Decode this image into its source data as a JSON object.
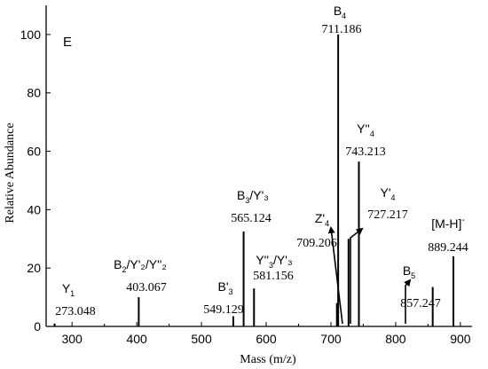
{
  "chart_data": {
    "type": "bar",
    "panel_label": "E",
    "xlabel": "Mass (m/z)",
    "ylabel": "Relative Abundance",
    "xlim": [
      260,
      918
    ],
    "ylim": [
      0,
      110
    ],
    "x_ticks": [
      300,
      400,
      500,
      600,
      700,
      800,
      900
    ],
    "y_ticks": [
      0,
      20,
      40,
      60,
      80,
      100
    ],
    "peaks": [
      {
        "mz": 273.048,
        "intensity": 1
      },
      {
        "mz": 403.067,
        "intensity": 10
      },
      {
        "mz": 549.129,
        "intensity": 3.5
      },
      {
        "mz": 565.124,
        "intensity": 32.5
      },
      {
        "mz": 581.156,
        "intensity": 13
      },
      {
        "mz": 709.206,
        "intensity": 8
      },
      {
        "mz": 711.186,
        "intensity": 100
      },
      {
        "mz": 727.217,
        "intensity": 30
      },
      {
        "mz": 743.213,
        "intensity": 56.5
      },
      {
        "mz": 857.247,
        "intensity": 13.5
      },
      {
        "mz": 889.244,
        "intensity": 24
      }
    ],
    "annotations": [
      {
        "ion": "Y",
        "sub": "1",
        "tail": "",
        "value": "273.048"
      },
      {
        "ion": "B",
        "sub": "2",
        "tail": "/Y'₂/Y''₂",
        "value": "403.067"
      },
      {
        "ion": "B'",
        "sub": "3",
        "tail": "",
        "value": "549.129"
      },
      {
        "ion": "B",
        "sub": "3",
        "tail": "/Y'₃",
        "value": "565.124"
      },
      {
        "ion": "Y''",
        "sub": "3",
        "tail": "/Y'₃",
        "value": "581.156"
      },
      {
        "ion": "Z'",
        "sub": "4",
        "tail": "",
        "value": "709.206"
      },
      {
        "ion": "B",
        "sub": "4",
        "tail": "",
        "value": "711.186"
      },
      {
        "ion": "Y'",
        "sub": "4",
        "tail": "",
        "value": "727.217"
      },
      {
        "ion": "Y''",
        "sub": "4",
        "tail": "",
        "value": "743.213"
      },
      {
        "ion": "B",
        "sub": "5",
        "tail": "",
        "value": "857.247"
      },
      {
        "ion": "[M-H]",
        "sup": "-",
        "value": "889.244"
      }
    ]
  }
}
